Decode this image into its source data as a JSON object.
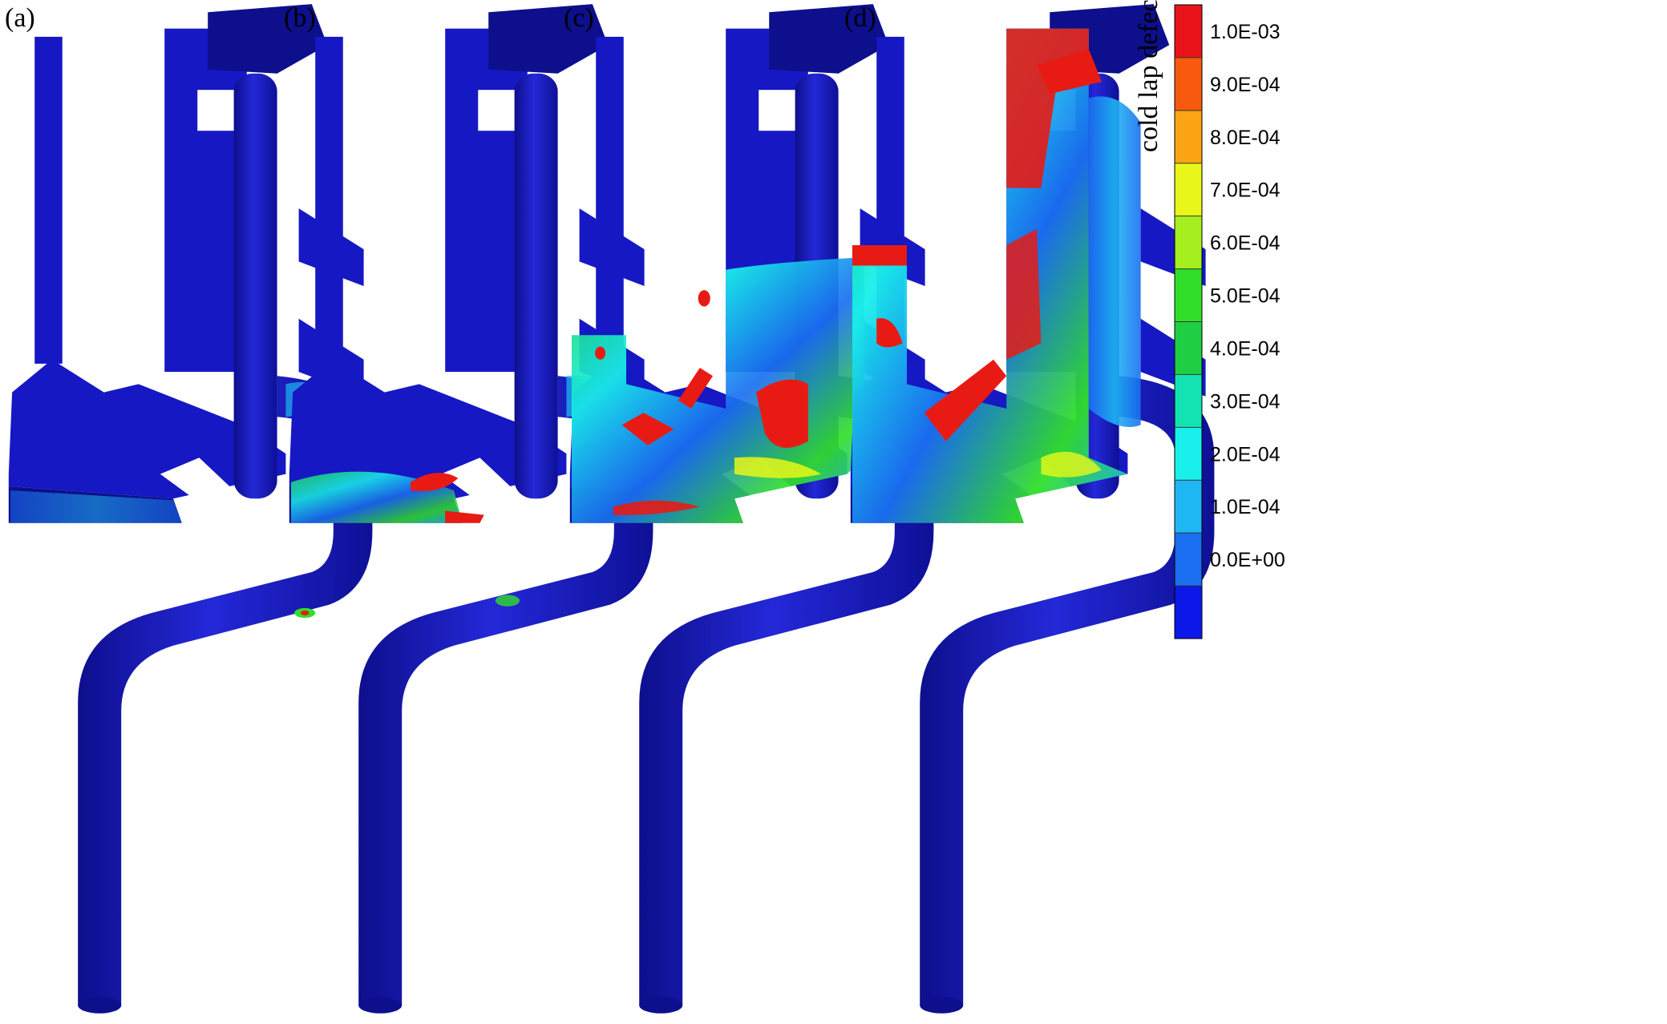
{
  "panels": [
    {
      "label": "(a)",
      "fill_level": 0.05
    },
    {
      "label": "(b)",
      "fill_level": 0.2
    },
    {
      "label": "(c)",
      "fill_level": 0.55
    },
    {
      "label": "(d)",
      "fill_level": 0.9
    }
  ],
  "legend": {
    "title": "cold lap defect",
    "ticks": [
      "1.0E-03",
      "9.0E-04",
      "8.0E-04",
      "7.0E-04",
      "6.0E-04",
      "5.0E-04",
      "4.0E-04",
      "3.0E-04",
      "2.0E-04",
      "1.0E-04",
      "0.0E+00"
    ],
    "colors": [
      "#e8141a",
      "#f7590f",
      "#fba514",
      "#e8f719",
      "#a6ef1f",
      "#31df2a",
      "#1fcf43",
      "#13e3b3",
      "#19f0eb",
      "#1eb7f3",
      "#1a6ef0",
      "#0c18e8"
    ]
  },
  "colors": {
    "mold_blue": "#1618c4",
    "mold_blue_dark": "#0d0f8c",
    "mold_blue_light": "#2a2fe0",
    "defect_red": "#e81b14",
    "defect_green": "#2fd64a",
    "defect_cyan": "#1fd0e6",
    "defect_lightblue": "#2a84ee"
  }
}
